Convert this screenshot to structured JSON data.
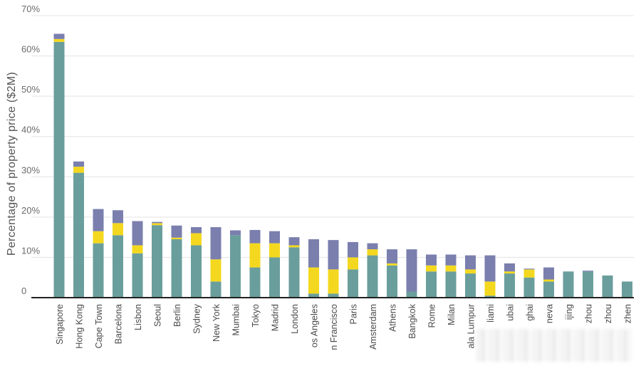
{
  "chart_data": {
    "type": "bar",
    "stacked": true,
    "ylabel": "Percentage of property price ($2M)",
    "ylim": [
      0,
      70
    ],
    "yticks": [
      "0",
      "10%",
      "20%",
      "30%",
      "40%",
      "50%",
      "60%",
      "70%"
    ],
    "grid": true,
    "categories": [
      "Singapore",
      "Hong Kong",
      "Cape Town",
      "Barcelona",
      "Lisbon",
      "Seoul",
      "Berlin",
      "Sydney",
      "New York",
      "Mumbai",
      "Tokyo",
      "Madrid",
      "London",
      "os Angeles",
      "n Francisco",
      "Paris",
      "Amsterdam",
      "Athens",
      "Bangkok",
      "Rome",
      "Milan",
      "ala Lumpur",
      "liami",
      "ubai",
      "ghai",
      "neva",
      "ijing",
      "zhou",
      "zhou",
      "zhen"
    ],
    "series": [
      {
        "color": "#6a9e9c",
        "values": [
          63.5,
          31,
          13.5,
          15.5,
          11,
          18,
          14.5,
          13,
          4,
          15.5,
          7.5,
          10,
          12.5,
          1,
          1,
          7,
          10.5,
          8,
          1.5,
          6.5,
          6.5,
          6,
          0.5,
          6,
          5,
          4,
          6.5,
          6.5,
          5.5,
          4
        ]
      },
      {
        "color": "#f4d81f",
        "values": [
          0.7,
          1.5,
          3,
          3,
          2,
          0.5,
          0.4,
          3,
          5.5,
          0,
          6,
          3.5,
          0.5,
          6.5,
          6,
          3,
          1.5,
          0.5,
          0,
          1.5,
          1.5,
          1,
          3.5,
          0.5,
          2,
          0.5,
          0,
          0,
          0,
          0
        ]
      },
      {
        "color": "#7a7fae",
        "values": [
          1.3,
          1.3,
          5.5,
          3.2,
          6,
          0.3,
          3,
          1.5,
          8,
          1.2,
          3.3,
          3,
          2,
          7,
          7.3,
          3.8,
          1.5,
          3.5,
          10.5,
          2.7,
          2.7,
          3.5,
          6.5,
          2,
          0.2,
          3,
          0,
          0.2,
          0,
          0
        ]
      }
    ]
  }
}
